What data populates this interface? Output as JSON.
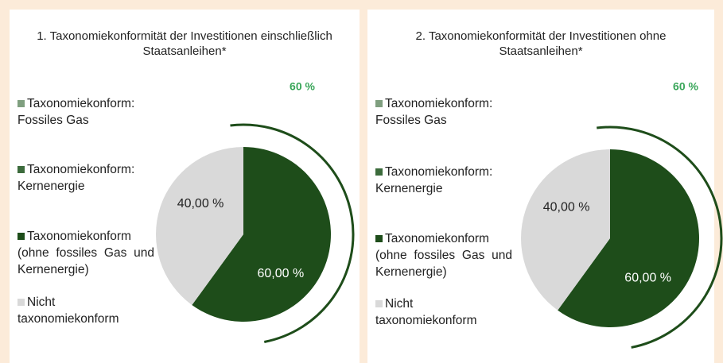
{
  "chart_data": [
    {
      "type": "pie",
      "title": "1. Taxonomiekonformität der Investitionen einschließlich Staatsanleihen*",
      "annotation": "60 %",
      "categories": [
        "Taxonomiekonform: Fossiles Gas",
        "Taxonomiekonform: Kernenergie",
        "Taxonomiekonform (ohne fossiles Gas und Kernenergie)",
        "Nicht taxonomiekonform"
      ],
      "values": [
        0,
        0,
        60,
        40
      ],
      "value_labels": [
        null,
        null,
        "60,00 %",
        "40,00 %"
      ],
      "colors": [
        "#7f9f7f",
        "#3c6b3c",
        "#1e4d1a",
        "#d9d9d9"
      ]
    },
    {
      "type": "pie",
      "title": "2. Taxonomiekonformität der Investitionen ohne Staatsanleihen*",
      "annotation": "60 %",
      "categories": [
        "Taxonomiekonform: Fossiles Gas",
        "Taxonomiekonform: Kernenergie",
        "Taxonomiekonform (ohne fossiles Gas und Kernenergie)",
        "Nicht taxonomiekonform"
      ],
      "values": [
        0,
        0,
        60,
        40
      ],
      "value_labels": [
        null,
        null,
        "60,00 %",
        "40,00 %"
      ],
      "colors": [
        "#7f9f7f",
        "#3c6b3c",
        "#1e4d1a",
        "#d9d9d9"
      ]
    }
  ]
}
